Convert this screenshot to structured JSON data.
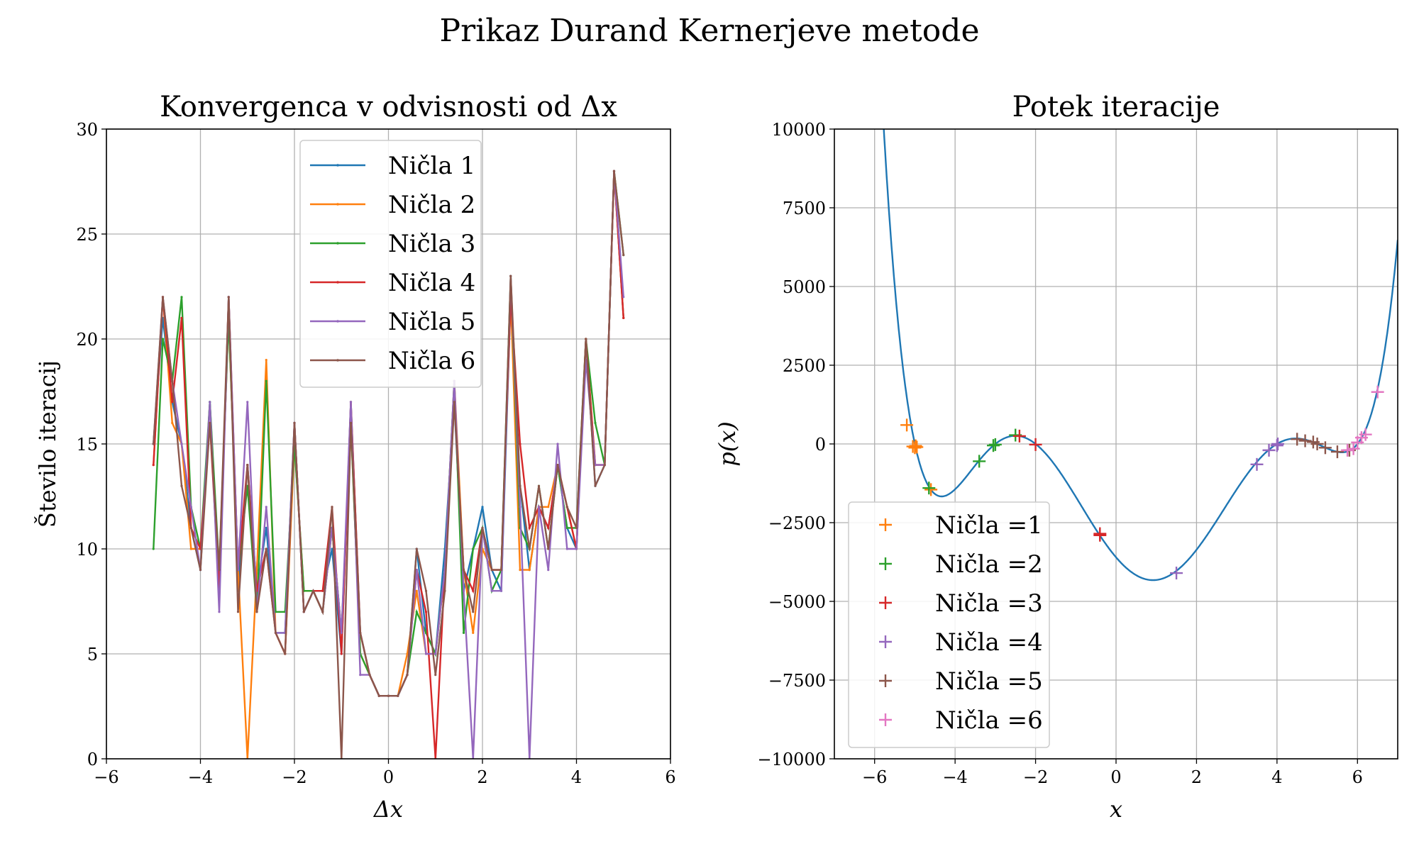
{
  "figure": {
    "suptitle": "Prikaz Durand Kernerjeve metode"
  },
  "colors": {
    "c1": "#1f77b4",
    "c2": "#ff7f0e",
    "c3": "#2ca02c",
    "c4": "#d62728",
    "c5": "#9467bd",
    "c6": "#8c564b",
    "c7": "#e377c2"
  },
  "chart_data": [
    {
      "type": "line",
      "title": "Konvergenca v odvisnosti od Δx",
      "xlabel": "Δx",
      "ylabel": "Število iteracij",
      "xlim": [
        -6,
        6
      ],
      "ylim": [
        0,
        30
      ],
      "xticks": [
        -6,
        -4,
        -2,
        0,
        2,
        4,
        6
      ],
      "xtick_labels": [
        "−6",
        "−4",
        "−2",
        "0",
        "2",
        "4",
        "6"
      ],
      "yticks": [
        0,
        5,
        10,
        15,
        20,
        25,
        30
      ],
      "ytick_labels": [
        "0",
        "5",
        "10",
        "15",
        "20",
        "25",
        "30"
      ],
      "grid": true,
      "legend_position": "upper center",
      "x": [
        -5.0,
        -4.8,
        -4.6,
        -4.4,
        -4.2,
        -4.0,
        -3.8,
        -3.6,
        -3.4,
        -3.2,
        -3.0,
        -2.8,
        -2.6,
        -2.4,
        -2.2,
        -2.0,
        -1.8,
        -1.6,
        -1.4,
        -1.2,
        -1.0,
        -0.8,
        -0.6,
        -0.4,
        -0.2,
        0.0,
        0.2,
        0.4,
        0.6,
        0.8,
        1.0,
        1.2,
        1.4,
        1.6,
        1.8,
        2.0,
        2.2,
        2.4,
        2.6,
        2.8,
        3.0,
        3.2,
        3.4,
        3.6,
        3.8,
        4.0,
        4.2,
        4.4,
        4.6,
        4.8,
        5.0
      ],
      "series": [
        {
          "name": "Ničla 1",
          "color_key": "c1",
          "values": [
            15,
            21,
            17,
            15,
            11,
            9,
            17,
            8,
            22,
            8,
            14,
            8,
            11,
            6,
            6,
            16,
            7,
            8,
            8,
            10,
            5,
            17,
            6,
            4,
            3,
            3,
            3,
            4,
            10,
            6,
            5,
            10,
            17,
            8,
            10,
            12,
            9,
            8,
            22,
            13,
            9,
            12,
            11,
            14,
            11,
            10,
            20,
            13,
            14,
            28,
            21
          ]
        },
        {
          "name": "Ničla 2",
          "color_key": "c2",
          "values": [
            14,
            22,
            16,
            15,
            10,
            10,
            16,
            9,
            21,
            9,
            0,
            9,
            19,
            6,
            5,
            15,
            8,
            8,
            7,
            11,
            6,
            16,
            5,
            4,
            3,
            3,
            3,
            5,
            8,
            5,
            5,
            9,
            18,
            9,
            6,
            10,
            9,
            9,
            22,
            9,
            9,
            12,
            12,
            14,
            12,
            10,
            20,
            14,
            14,
            28,
            21
          ]
        },
        {
          "name": "Ničla 3",
          "color_key": "c3",
          "values": [
            10,
            20,
            18,
            22,
            12,
            10,
            17,
            9,
            21,
            9,
            13,
            7,
            18,
            7,
            7,
            15,
            8,
            8,
            7,
            11,
            6,
            16,
            5,
            4,
            3,
            3,
            3,
            4,
            7,
            6,
            5,
            9,
            18,
            6,
            10,
            11,
            8,
            9,
            23,
            11,
            10,
            13,
            10,
            14,
            11,
            11,
            20,
            16,
            14,
            28,
            24
          ]
        },
        {
          "name": "Ničla 4",
          "color_key": "c4",
          "values": [
            14,
            22,
            17,
            21,
            11,
            10,
            16,
            8,
            22,
            9,
            14,
            8,
            10,
            6,
            5,
            16,
            7,
            8,
            8,
            12,
            5,
            17,
            6,
            4,
            3,
            3,
            3,
            4,
            9,
            7,
            0,
            9,
            17,
            9,
            8,
            11,
            9,
            9,
            22,
            15,
            11,
            12,
            11,
            14,
            12,
            10,
            20,
            14,
            14,
            28,
            21
          ]
        },
        {
          "name": "Ničla 5",
          "color_key": "c5",
          "values": [
            15,
            22,
            18,
            15,
            12,
            9,
            17,
            7,
            22,
            9,
            17,
            7,
            12,
            6,
            6,
            16,
            7,
            8,
            7,
            11,
            6,
            17,
            4,
            4,
            3,
            3,
            3,
            4,
            9,
            5,
            5,
            9,
            18,
            8,
            0,
            11,
            8,
            8,
            23,
            12,
            0,
            12,
            9,
            15,
            10,
            10,
            19,
            14,
            14,
            28,
            22
          ]
        },
        {
          "name": "Ničla 6",
          "color_key": "c6",
          "values": [
            15,
            22,
            18,
            13,
            11,
            9,
            16,
            9,
            22,
            7,
            14,
            7,
            10,
            6,
            5,
            16,
            7,
            8,
            7,
            12,
            0,
            16,
            6,
            4,
            3,
            3,
            3,
            4,
            10,
            8,
            4,
            8,
            17,
            9,
            7,
            11,
            9,
            9,
            23,
            13,
            10,
            13,
            10,
            14,
            12,
            11,
            20,
            13,
            14,
            28,
            24
          ]
        }
      ]
    },
    {
      "type": "line",
      "title": "Potek iteracije",
      "xlabel": "x",
      "ylabel": "p(x)",
      "xlim": [
        -7,
        7
      ],
      "ylim": [
        -10000,
        10000
      ],
      "xticks": [
        -6,
        -4,
        -2,
        0,
        2,
        4,
        6
      ],
      "xtick_labels": [
        "−6",
        "−4",
        "−2",
        "0",
        "2",
        "4",
        "6"
      ],
      "yticks": [
        -10000,
        -7500,
        -5000,
        -2500,
        0,
        2500,
        5000,
        7500,
        10000
      ],
      "ytick_labels": [
        "−10000",
        "−7500",
        "−5000",
        "−2500",
        "0",
        "2500",
        "5000",
        "7500",
        "10000"
      ],
      "grid": true,
      "legend_position": "lower left",
      "polynomial": {
        "color_key": "c1",
        "roots": [
          -5,
          -3,
          -2,
          4,
          5,
          6
        ],
        "leading_coefficient": 1,
        "x_range": [
          -7,
          7
        ]
      },
      "scatter_series": [
        {
          "name": "Ničla =1",
          "color_key": "c2",
          "points": [
            [
              -5.2,
              600
            ],
            [
              -5.05,
              -80
            ],
            [
              -5.0,
              -120
            ],
            [
              -4.98,
              -60
            ],
            [
              -4.95,
              -100
            ],
            [
              -4.6,
              -1450
            ]
          ]
        },
        {
          "name": "Ničla =2",
          "color_key": "c3",
          "points": [
            [
              -4.65,
              -1400
            ],
            [
              -3.4,
              -550
            ],
            [
              -3.05,
              -50
            ],
            [
              -3.0,
              -20
            ],
            [
              -2.5,
              280
            ]
          ]
        },
        {
          "name": "Ničla =3",
          "color_key": "c4",
          "points": [
            [
              -2.4,
              250
            ],
            [
              -2.0,
              -20
            ],
            [
              -0.4,
              -2900
            ],
            [
              -0.4,
              -2850
            ]
          ]
        },
        {
          "name": "Ničla =4",
          "color_key": "c5",
          "points": [
            [
              1.5,
              -4100
            ],
            [
              3.5,
              -650
            ],
            [
              3.8,
              -200
            ],
            [
              4.0,
              -50
            ],
            [
              4.02,
              0
            ]
          ]
        },
        {
          "name": "Ničla =5",
          "color_key": "c6",
          "points": [
            [
              4.5,
              150
            ],
            [
              4.7,
              100
            ],
            [
              4.9,
              60
            ],
            [
              5.0,
              0
            ],
            [
              5.2,
              -120
            ],
            [
              5.5,
              -250
            ],
            [
              5.8,
              -200
            ]
          ]
        },
        {
          "name": "Ničla =6",
          "color_key": "c7",
          "points": [
            [
              5.75,
              -200
            ],
            [
              5.9,
              -150
            ],
            [
              6.0,
              50
            ],
            [
              6.1,
              200
            ],
            [
              6.2,
              300
            ],
            [
              6.5,
              1650
            ]
          ]
        }
      ]
    }
  ]
}
